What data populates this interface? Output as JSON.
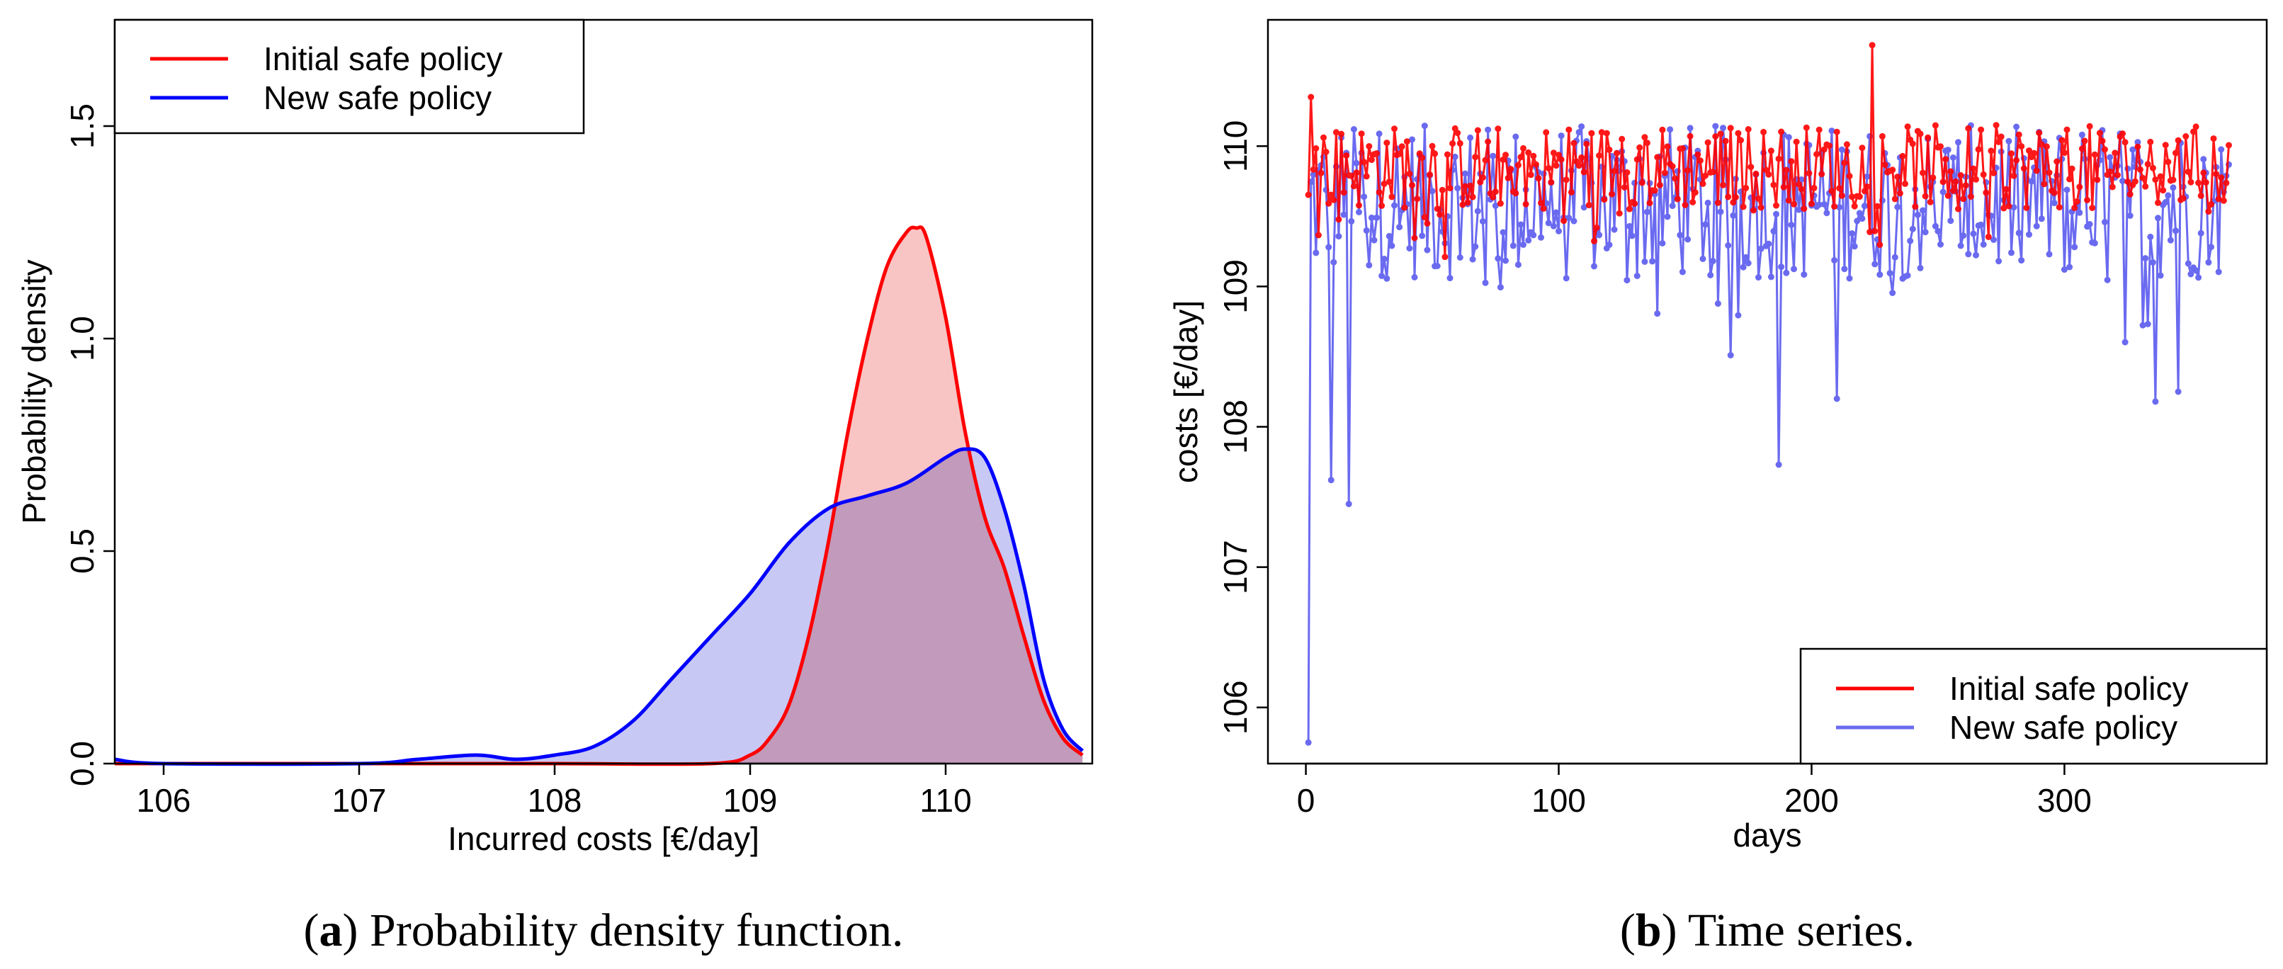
{
  "chart_data": [
    {
      "type": "area",
      "panel": "a",
      "caption_letter": "a",
      "caption_text": "Probability density function.",
      "title": "",
      "xlabel": "Incurred costs [€/day]",
      "ylabel": "Probability density",
      "xlim": [
        105.75,
        110.75
      ],
      "ylim": [
        0,
        1.75
      ],
      "xticks": [
        106,
        107,
        108,
        109,
        110
      ],
      "yticks": [
        0.0,
        0.5,
        1.0,
        1.5
      ],
      "ytick_labels": [
        "0.0",
        "0.5",
        "1.0",
        "1.5"
      ],
      "legend_position": "top-left",
      "series": [
        {
          "name": "Initial safe policy",
          "color": "#ff0000",
          "fill": "#f8c4c4",
          "x": [
            105.75,
            107.0,
            108.0,
            108.8,
            109.0,
            109.1,
            109.2,
            109.3,
            109.4,
            109.5,
            109.6,
            109.7,
            109.8,
            109.85,
            109.9,
            110.0,
            110.1,
            110.2,
            110.3,
            110.4,
            110.5,
            110.6,
            110.7
          ],
          "y": [
            0.0,
            0.0,
            0.0,
            0.0,
            0.02,
            0.06,
            0.14,
            0.3,
            0.52,
            0.78,
            1.0,
            1.17,
            1.25,
            1.26,
            1.24,
            1.05,
            0.78,
            0.58,
            0.46,
            0.3,
            0.15,
            0.06,
            0.02
          ]
        },
        {
          "name": "New safe policy",
          "color": "#0000ff",
          "fill": "#c8c8f4",
          "x": [
            105.75,
            106.0,
            107.0,
            107.3,
            107.6,
            107.8,
            108.0,
            108.2,
            108.4,
            108.6,
            108.8,
            109.0,
            109.2,
            109.4,
            109.6,
            109.8,
            110.0,
            110.1,
            110.2,
            110.3,
            110.4,
            110.5,
            110.6,
            110.7
          ],
          "y": [
            0.01,
            0.0,
            0.0,
            0.01,
            0.02,
            0.01,
            0.02,
            0.04,
            0.1,
            0.2,
            0.3,
            0.4,
            0.52,
            0.6,
            0.63,
            0.66,
            0.72,
            0.74,
            0.72,
            0.6,
            0.42,
            0.2,
            0.08,
            0.03
          ]
        }
      ]
    },
    {
      "type": "line",
      "panel": "b",
      "caption_letter": "b",
      "caption_text": "Time series.",
      "title": "",
      "xlabel": "days",
      "ylabel": "costs [€/day]",
      "xlim": [
        -15,
        380
      ],
      "ylim": [
        105.6,
        110.9
      ],
      "xticks": [
        0,
        100,
        200,
        300
      ],
      "yticks": [
        106,
        107,
        108,
        109,
        110
      ],
      "legend_position": "bottom-right",
      "series": [
        {
          "name": "Initial safe policy",
          "color": "#ff0000",
          "mean": 109.85,
          "spread": 0.3,
          "notable_points": [
            [
              2,
              110.35
            ],
            [
              224,
              110.72
            ]
          ]
        },
        {
          "name": "New safe policy",
          "color": "#6a6af0",
          "mean": 109.6,
          "spread": 0.55,
          "notable_points": [
            [
              1,
              105.75
            ],
            [
              10,
              107.62
            ],
            [
              17,
              107.45
            ],
            [
              187,
              107.73
            ],
            [
              210,
              108.2
            ],
            [
              336,
              108.18
            ],
            [
              345,
              108.25
            ]
          ]
        }
      ]
    }
  ]
}
